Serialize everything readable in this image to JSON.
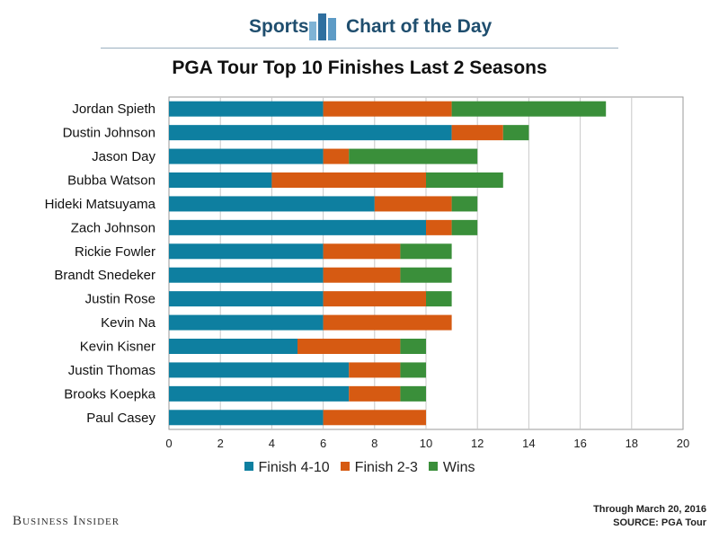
{
  "header": {
    "left_word": "Sports",
    "right_word": "Chart of the Day"
  },
  "chart_data": {
    "type": "bar",
    "orientation": "horizontal",
    "stacked": true,
    "title": "PGA Tour Top 10 Finishes Last 2 Seasons",
    "categories": [
      "Jordan Spieth",
      "Dustin Johnson",
      "Jason Day",
      "Bubba Watson",
      "Hideki Matsuyama",
      "Zach Johnson",
      "Rickie Fowler",
      "Brandt Snedeker",
      "Justin Rose",
      "Kevin Na",
      "Kevin Kisner",
      "Justin Thomas",
      "Brooks Koepka",
      "Paul Casey"
    ],
    "series": [
      {
        "name": "Finish 4-10",
        "color": "#0e7fa0",
        "values": [
          6,
          11,
          6,
          4,
          8,
          10,
          6,
          6,
          6,
          6,
          5,
          7,
          7,
          6
        ]
      },
      {
        "name": "Finish 2-3",
        "color": "#d65a12",
        "values": [
          5,
          2,
          1,
          6,
          3,
          1,
          3,
          3,
          4,
          5,
          4,
          2,
          2,
          4
        ]
      },
      {
        "name": "Wins",
        "color": "#3a8f3a",
        "values": [
          6,
          1,
          5,
          3,
          1,
          1,
          2,
          2,
          1,
          0,
          1,
          1,
          1,
          0
        ]
      }
    ],
    "xlim": [
      0,
      20
    ],
    "xticks": [
      0,
      2,
      4,
      6,
      8,
      10,
      12,
      14,
      16,
      18,
      20
    ],
    "grid": true,
    "legend_position": "bottom"
  },
  "footer": {
    "note_date": "Through March 20, 2016",
    "note_source": "SOURCE: PGA Tour",
    "brand": "Business Insider"
  }
}
